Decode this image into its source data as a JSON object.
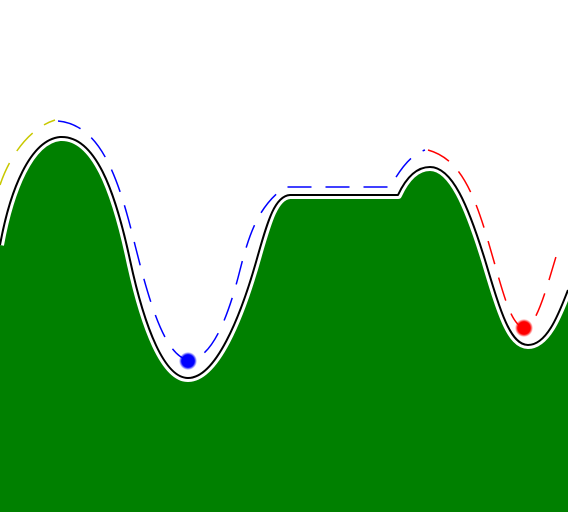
{
  "scene": {
    "background_color": "#ffffff",
    "terrain_color": "#008000",
    "terrain_outline_color": "#000000",
    "white_halo_color": "#ffffff",
    "blue_ball_color": "#0000ff",
    "red_ball_color": "#ff0000",
    "blue_path_color": "#0000ff",
    "red_path_color": "#ff0000",
    "yellow_path_color": "#c8c800"
  }
}
